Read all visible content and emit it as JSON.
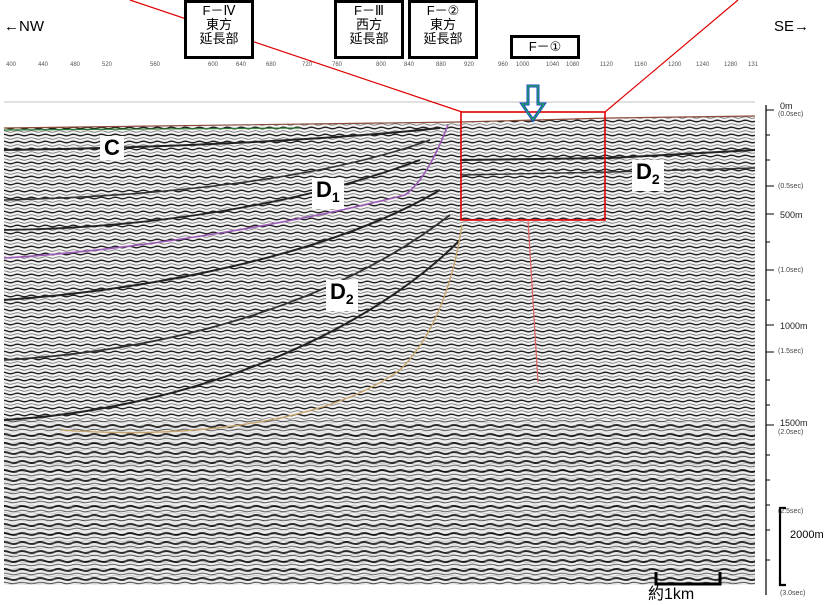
{
  "directions": {
    "left": "←NW",
    "right": "SE→"
  },
  "faults": [
    {
      "id": "f4",
      "line1": "F－Ⅳ",
      "line2": "東方",
      "line3": "延長部"
    },
    {
      "id": "f3",
      "line1": "F－Ⅲ",
      "line2": "西方",
      "line3": "延長部"
    },
    {
      "id": "f2",
      "line1": "F－②",
      "line2": "東方",
      "line3": "延長部"
    },
    {
      "id": "f1",
      "line1": "F－①"
    }
  ],
  "units": {
    "C": "C",
    "D1": "D",
    "D1_sub": "1",
    "D2a": "D",
    "D2a_sub": "2",
    "D2b": "D",
    "D2b_sub": "2"
  },
  "top_scale": [
    "400",
    "440",
    "480",
    "520",
    "560",
    "600",
    "640",
    "680",
    "720",
    "760",
    "800",
    "840",
    "880",
    "920",
    "960",
    "1000",
    "1040",
    "1080",
    "1120",
    "1160",
    "1200",
    "1240",
    "1280",
    "131"
  ],
  "depth_scale": {
    "m0": "0m",
    "s0": "(0.0sec)",
    "s05": "(0.5sec)",
    "m500": "500m",
    "s10": "(1.0sec)",
    "m1000": "1000m",
    "s15": "(1.5sec)",
    "m1500": "1500m",
    "s20": "(2.0sec)",
    "s25": "(2.5sec)",
    "m2000": "2000m",
    "s30": "(3.0sec)"
  },
  "scale_bar": "約1km"
}
